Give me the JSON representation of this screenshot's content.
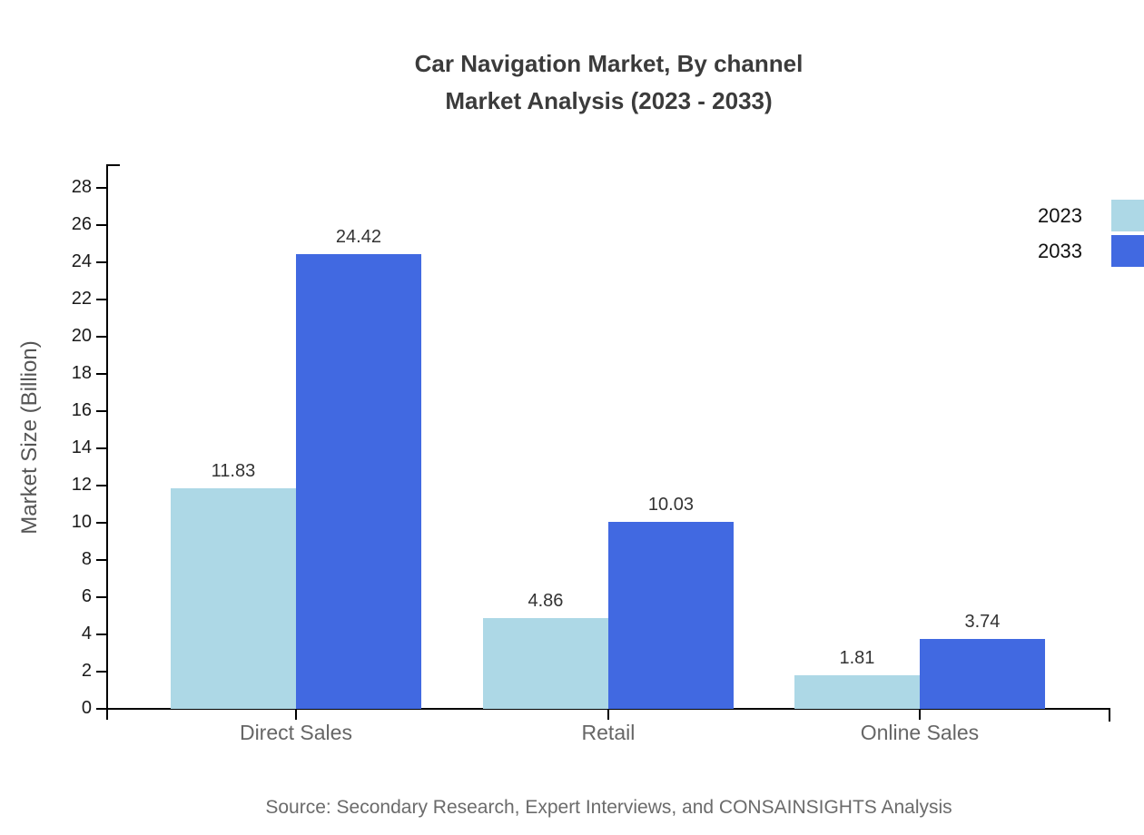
{
  "title": {
    "line1": "Car Navigation Market, By channel",
    "line2": "Market Analysis (2023 - 2033)"
  },
  "source_note": "Source: Secondary Research, Expert Interviews, and CONSAINSIGHTS Analysis",
  "chart_data": {
    "type": "bar",
    "title": "Car Navigation Market, By channel Market Analysis (2023 - 2033)",
    "categories": [
      "Direct Sales",
      "Retail",
      "Online Sales"
    ],
    "series": [
      {
        "name": "2023",
        "color": "#ADD8E6",
        "values": [
          11.83,
          4.86,
          1.81
        ]
      },
      {
        "name": "2033",
        "color": "#4169E1",
        "values": [
          24.42,
          10.03,
          3.74
        ]
      }
    ],
    "xlabel": "",
    "ylabel": "Market Size (Billion)",
    "ylim": [
      0,
      29.2
    ],
    "yticks": [
      0,
      2,
      4,
      6,
      8,
      10,
      12,
      14,
      16,
      18,
      20,
      22,
      24,
      26,
      28
    ],
    "grid": false,
    "legend_position": "top-right",
    "value_labels": true,
    "axis_color": "#000000"
  }
}
